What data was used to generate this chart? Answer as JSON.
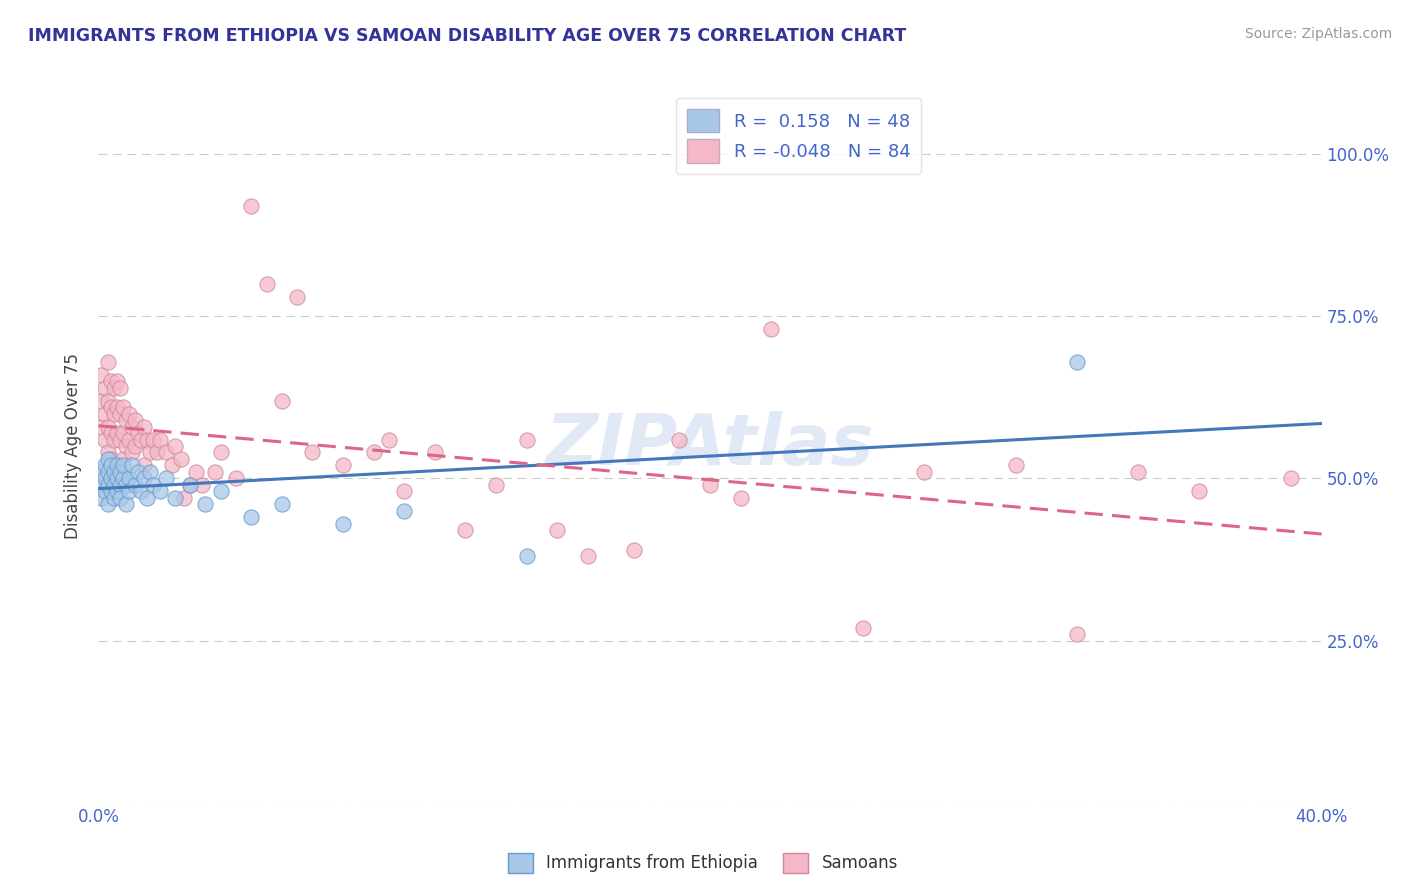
{
  "title": "IMMIGRANTS FROM ETHIOPIA VS SAMOAN DISABILITY AGE OVER 75 CORRELATION CHART",
  "source": "Source: ZipAtlas.com",
  "ylabel": "Disability Age Over 75",
  "x_min": 0.0,
  "x_max": 0.4,
  "y_min": 0.0,
  "y_max": 1.1,
  "x_ticks": [
    0.0,
    0.1,
    0.2,
    0.3,
    0.4
  ],
  "x_tick_labels": [
    "0.0%",
    "",
    "",
    "",
    "40.0%"
  ],
  "y_ticks": [
    0.0,
    0.25,
    0.5,
    0.75,
    1.0
  ],
  "y_tick_labels": [
    "",
    "25.0%",
    "50.0%",
    "75.0%",
    "100.0%"
  ],
  "legend_label1": "Immigrants from Ethiopia",
  "legend_label2": "Samoans",
  "r1": 0.158,
  "n1": 48,
  "r2": -0.048,
  "n2": 84,
  "color_blue": "#a8c8e8",
  "color_pink": "#f4b8c8",
  "color_blue_edge": "#6699cc",
  "color_pink_edge": "#cc8899",
  "color_blue_line": "#4477bb",
  "color_pink_line": "#dd6688",
  "watermark": "ZIPAtlas",
  "axis_color": "#4466cc",
  "title_color": "#333399",
  "blue_scatter": [
    [
      0.001,
      0.49
    ],
    [
      0.001,
      0.51
    ],
    [
      0.001,
      0.47
    ],
    [
      0.002,
      0.5
    ],
    [
      0.002,
      0.48
    ],
    [
      0.002,
      0.52
    ],
    [
      0.003,
      0.49
    ],
    [
      0.003,
      0.51
    ],
    [
      0.003,
      0.46
    ],
    [
      0.003,
      0.53
    ],
    [
      0.004,
      0.5
    ],
    [
      0.004,
      0.48
    ],
    [
      0.004,
      0.52
    ],
    [
      0.005,
      0.49
    ],
    [
      0.005,
      0.47
    ],
    [
      0.005,
      0.51
    ],
    [
      0.006,
      0.5
    ],
    [
      0.006,
      0.48
    ],
    [
      0.006,
      0.52
    ],
    [
      0.007,
      0.49
    ],
    [
      0.007,
      0.51
    ],
    [
      0.007,
      0.47
    ],
    [
      0.008,
      0.5
    ],
    [
      0.008,
      0.52
    ],
    [
      0.009,
      0.49
    ],
    [
      0.009,
      0.46
    ],
    [
      0.01,
      0.5
    ],
    [
      0.01,
      0.48
    ],
    [
      0.011,
      0.52
    ],
    [
      0.012,
      0.49
    ],
    [
      0.013,
      0.51
    ],
    [
      0.014,
      0.48
    ],
    [
      0.015,
      0.5
    ],
    [
      0.016,
      0.47
    ],
    [
      0.017,
      0.51
    ],
    [
      0.018,
      0.49
    ],
    [
      0.02,
      0.48
    ],
    [
      0.022,
      0.5
    ],
    [
      0.025,
      0.47
    ],
    [
      0.03,
      0.49
    ],
    [
      0.035,
      0.46
    ],
    [
      0.04,
      0.48
    ],
    [
      0.05,
      0.44
    ],
    [
      0.06,
      0.46
    ],
    [
      0.08,
      0.43
    ],
    [
      0.1,
      0.45
    ],
    [
      0.14,
      0.38
    ],
    [
      0.32,
      0.68
    ]
  ],
  "pink_scatter": [
    [
      0.001,
      0.62
    ],
    [
      0.001,
      0.58
    ],
    [
      0.001,
      0.66
    ],
    [
      0.002,
      0.64
    ],
    [
      0.002,
      0.6
    ],
    [
      0.002,
      0.56
    ],
    [
      0.003,
      0.62
    ],
    [
      0.003,
      0.58
    ],
    [
      0.003,
      0.68
    ],
    [
      0.003,
      0.54
    ],
    [
      0.004,
      0.61
    ],
    [
      0.004,
      0.57
    ],
    [
      0.004,
      0.65
    ],
    [
      0.004,
      0.53
    ],
    [
      0.005,
      0.6
    ],
    [
      0.005,
      0.56
    ],
    [
      0.005,
      0.64
    ],
    [
      0.005,
      0.52
    ],
    [
      0.006,
      0.61
    ],
    [
      0.006,
      0.57
    ],
    [
      0.006,
      0.65
    ],
    [
      0.006,
      0.51
    ],
    [
      0.007,
      0.6
    ],
    [
      0.007,
      0.56
    ],
    [
      0.007,
      0.64
    ],
    [
      0.007,
      0.5
    ],
    [
      0.008,
      0.61
    ],
    [
      0.008,
      0.57
    ],
    [
      0.008,
      0.53
    ],
    [
      0.009,
      0.59
    ],
    [
      0.009,
      0.55
    ],
    [
      0.01,
      0.6
    ],
    [
      0.01,
      0.56
    ],
    [
      0.011,
      0.58
    ],
    [
      0.011,
      0.54
    ],
    [
      0.012,
      0.59
    ],
    [
      0.012,
      0.55
    ],
    [
      0.013,
      0.57
    ],
    [
      0.014,
      0.56
    ],
    [
      0.015,
      0.58
    ],
    [
      0.015,
      0.52
    ],
    [
      0.016,
      0.56
    ],
    [
      0.017,
      0.54
    ],
    [
      0.018,
      0.56
    ],
    [
      0.019,
      0.54
    ],
    [
      0.02,
      0.56
    ],
    [
      0.022,
      0.54
    ],
    [
      0.024,
      0.52
    ],
    [
      0.025,
      0.55
    ],
    [
      0.027,
      0.53
    ],
    [
      0.028,
      0.47
    ],
    [
      0.03,
      0.49
    ],
    [
      0.032,
      0.51
    ],
    [
      0.034,
      0.49
    ],
    [
      0.038,
      0.51
    ],
    [
      0.04,
      0.54
    ],
    [
      0.045,
      0.5
    ],
    [
      0.05,
      0.92
    ],
    [
      0.055,
      0.8
    ],
    [
      0.06,
      0.62
    ],
    [
      0.065,
      0.78
    ],
    [
      0.07,
      0.54
    ],
    [
      0.08,
      0.52
    ],
    [
      0.09,
      0.54
    ],
    [
      0.095,
      0.56
    ],
    [
      0.1,
      0.48
    ],
    [
      0.11,
      0.54
    ],
    [
      0.12,
      0.42
    ],
    [
      0.13,
      0.49
    ],
    [
      0.14,
      0.56
    ],
    [
      0.15,
      0.42
    ],
    [
      0.16,
      0.38
    ],
    [
      0.175,
      0.39
    ],
    [
      0.19,
      0.56
    ],
    [
      0.2,
      0.49
    ],
    [
      0.21,
      0.47
    ],
    [
      0.22,
      0.73
    ],
    [
      0.25,
      0.27
    ],
    [
      0.27,
      0.51
    ],
    [
      0.3,
      0.52
    ],
    [
      0.32,
      0.26
    ],
    [
      0.34,
      0.51
    ],
    [
      0.36,
      0.48
    ],
    [
      0.39,
      0.5
    ]
  ]
}
